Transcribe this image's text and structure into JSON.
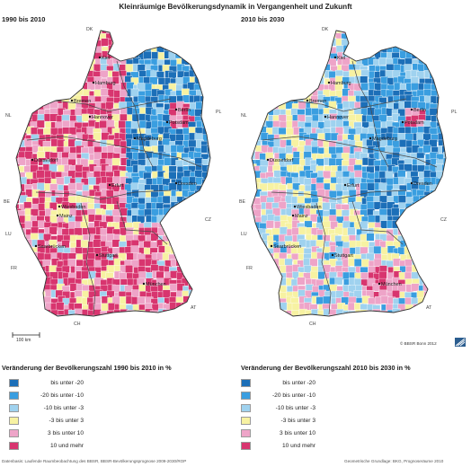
{
  "title": "Kleinräumige Bevölkerungsdynamik in Vergangenheit und Zukunft",
  "panels": [
    {
      "label": "1990 bis 2010",
      "legend_title": "Veränderung der Bevölkerungszahl 1990 bis 2010 in %",
      "cities": [
        "Kiel",
        "Hamburg",
        "Bremen",
        "Hannover",
        "Berlin",
        "Potsdam",
        "Magdeburg",
        "Düsseldorf",
        "Erfurt",
        "Dresden",
        "Wiesbaden",
        "Mainz",
        "Saarbrücken",
        "Stuttgart",
        "München"
      ],
      "countries": [
        "DK",
        "NL",
        "BE",
        "LU",
        "FR",
        "CH",
        "AT",
        "CZ",
        "PL"
      ],
      "scale_label": "100 km"
    },
    {
      "label": "2010 bis 2030",
      "legend_title": "Veränderung der Bevölkerungszahl 2010 bis 2030 in %",
      "cities": [
        "Kiel",
        "Hamburg",
        "Bremen",
        "Hannover",
        "Berlin",
        "Potsdam",
        "Magdeburg",
        "Düsseldorf",
        "Erfurt",
        "Dresden",
        "Wiesbaden",
        "Mainz",
        "Saarbrücken",
        "Stuttgart",
        "München"
      ],
      "countries": [
        "DK",
        "NL",
        "BE",
        "LU",
        "FR",
        "CH",
        "AT",
        "CZ",
        "PL"
      ],
      "credit": "© BBSR Bonn 2012"
    }
  ],
  "legend": [
    {
      "label": "bis unter -20",
      "color": "#1c6fb8"
    },
    {
      "label": "-20 bis unter -10",
      "color": "#3a9ee0"
    },
    {
      "label": "-10 bis unter -3",
      "color": "#9fd2ef"
    },
    {
      "label": "-3 bis unter 3",
      "color": "#f7f2a2"
    },
    {
      "label": "3 bis unter 10",
      "color": "#eea4c8"
    },
    {
      "label": "10 und mehr",
      "color": "#d8356f"
    }
  ],
  "footer_left": "Datenbasis: Laufende Raumbeobachtung des BBSR, BBSR-Bevölkerungsprognose 2009-2030/ROP",
  "footer_right": "Geometrische Grundlage: BKG, Prognoseräume 2010"
}
